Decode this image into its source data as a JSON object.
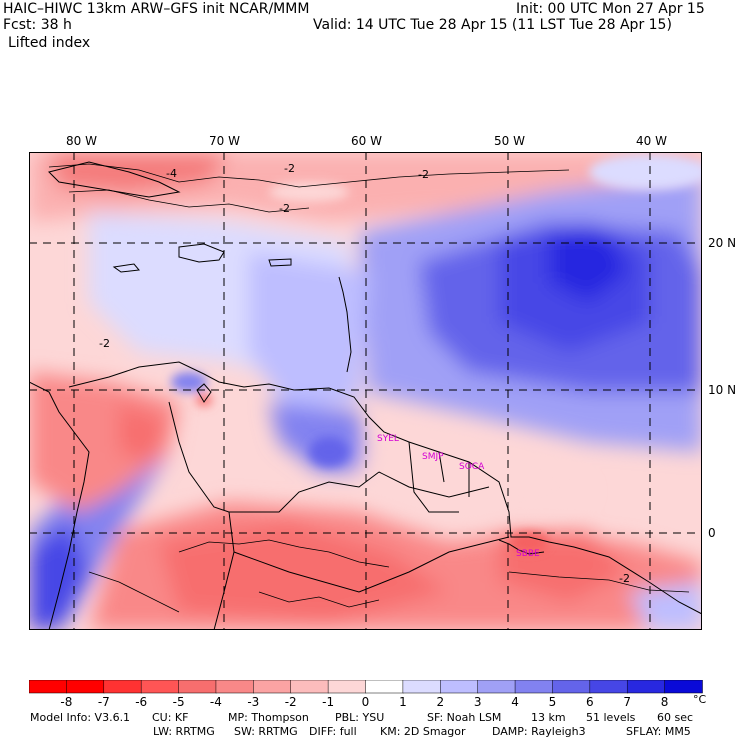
{
  "header": {
    "title_left": "HAIC–HIWC 13km ARW–GFS init   NCAR/MMM",
    "fcst": "Fcst:   38 h",
    "field": "Lifted index",
    "init": "Init: 00 UTC Mon 27 Apr 15",
    "valid": "Valid: 14 UTC Tue 28 Apr 15 (11 LST Tue 28 Apr 15)"
  },
  "axes": {
    "lon_labels": [
      "80 W",
      "70 W",
      "60 W",
      "50 W",
      "40 W"
    ],
    "lat_labels": [
      "20 N",
      "10 N",
      "0"
    ]
  },
  "contour_labels": [
    "-4",
    "-2",
    "-2",
    "-2",
    "-2",
    "-2"
  ],
  "stations": [
    "SYEL",
    "SMJP",
    "SOCA",
    "SBBE"
  ],
  "colorbar": {
    "unit": "°C",
    "ticks": [
      "-8",
      "-7",
      "-6",
      "-5",
      "-4",
      "-3",
      "-2",
      "-1",
      "0",
      "1",
      "2",
      "3",
      "4",
      "5",
      "6",
      "7",
      "8"
    ],
    "colors": [
      "#ff0000",
      "#ff3232",
      "#ff5555",
      "#f76e6e",
      "#f98888",
      "#fba3a3",
      "#fcbcbc",
      "#fdd7d7",
      "#ffffff",
      "#dcdcff",
      "#bebeff",
      "#a0a0f6",
      "#8282f0",
      "#6464ea",
      "#4646e6",
      "#2828e0",
      "#0a0ad8"
    ]
  },
  "footer": {
    "line1": [
      "Model Info: V3.6.1",
      "CU: KF",
      "MP: Thompson",
      "PBL: YSU",
      "SF: Noah LSM",
      "13 km",
      "51 levels",
      "60 sec"
    ],
    "line2": [
      "LW: RRTMG",
      "SW: RRTMG",
      "DIFF: full",
      "KM: 2D Smagor",
      "DAMP: Rayleigh3",
      "SFLAY: MM5"
    ]
  }
}
